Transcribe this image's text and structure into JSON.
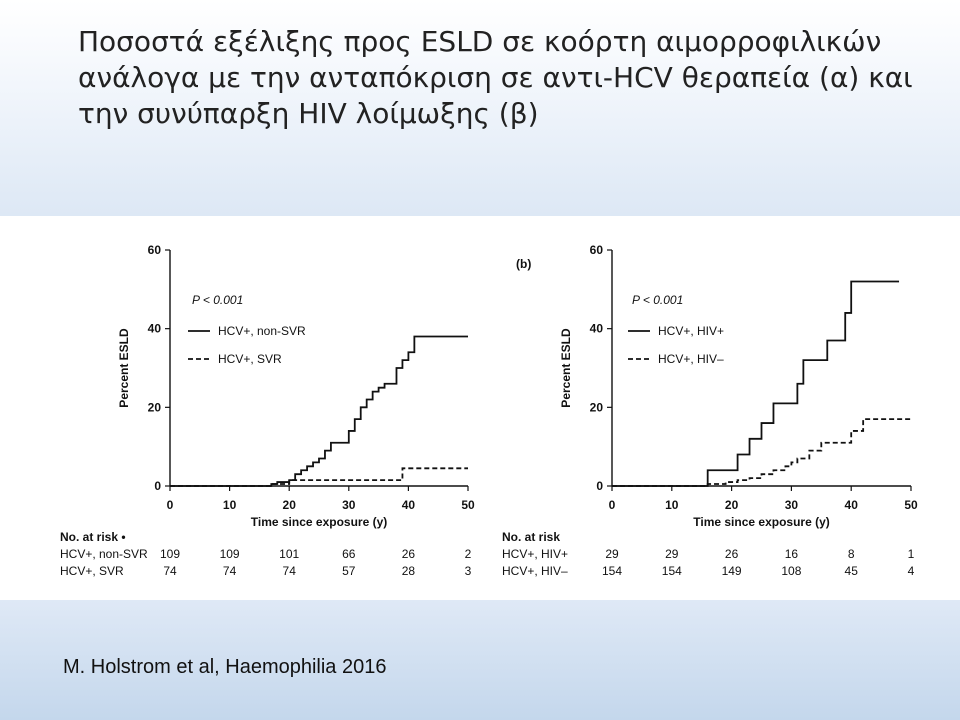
{
  "slide": {
    "title": "Ποσοστά εξέλιξης προς ESLD σε κοόρτη αιμορροφιλικών ανάλογα με την ανταπόκριση σε αντι-HCV θεραπεία (α) και την συνύπαρξη HIV λοίμωξης (β)",
    "citation": "M. Holstrom et al, Haemophilia 2016"
  },
  "chart_data": [
    {
      "type": "line",
      "panel_label": "",
      "xlabel": "Time since exposure (y)",
      "ylabel": "Percent ESLD",
      "xlim": [
        0,
        50
      ],
      "ylim": [
        0,
        60
      ],
      "x_ticks": [
        0,
        10,
        20,
        30,
        40,
        50
      ],
      "y_ticks": [
        0,
        20,
        40,
        60
      ],
      "annotation": "P < 0.001",
      "legend_position": "upper-left",
      "series": [
        {
          "name": "HCV+, non-SVR",
          "style": "solid",
          "x": [
            0,
            17,
            18,
            20,
            21,
            22,
            23,
            24,
            25,
            26,
            27,
            30,
            31,
            32,
            33,
            34,
            35,
            36,
            38,
            39,
            40,
            41,
            50
          ],
          "y": [
            0,
            0.5,
            1,
            1.5,
            3,
            4,
            5,
            6,
            7,
            9,
            11,
            14,
            17,
            20,
            22,
            24,
            25,
            26,
            30,
            32,
            34,
            38,
            38
          ]
        },
        {
          "name": "HCV+, SVR",
          "style": "dashed",
          "x": [
            0,
            17,
            20,
            38,
            39,
            50
          ],
          "y": [
            0,
            0.5,
            1.5,
            1.5,
            4.5,
            4.5
          ]
        }
      ],
      "risk_table": {
        "header": "No. at risk •",
        "rows": [
          {
            "label": "HCV+, non-SVR",
            "values": [
              "109",
              "109",
              "101",
              "66",
              "26",
              "2"
            ]
          },
          {
            "label": "HCV+, SVR",
            "values": [
              "74",
              "74",
              "74",
              "57",
              "28",
              "3"
            ]
          }
        ]
      }
    },
    {
      "type": "line",
      "panel_label": "(b)",
      "xlabel": "Time since exposure (y)",
      "ylabel": "Percent ESLD",
      "xlim": [
        0,
        50
      ],
      "ylim": [
        0,
        60
      ],
      "x_ticks": [
        0,
        10,
        20,
        30,
        40,
        50
      ],
      "y_ticks": [
        0,
        20,
        40,
        60
      ],
      "annotation": "P < 0.001",
      "legend_position": "upper-left",
      "series": [
        {
          "name": "HCV+, HIV+",
          "style": "solid",
          "x": [
            0,
            16,
            20,
            21,
            23,
            25,
            27,
            30,
            31,
            32,
            36,
            39,
            40,
            48
          ],
          "y": [
            0,
            4,
            4,
            8,
            12,
            16,
            21,
            21,
            26,
            32,
            37,
            44,
            52,
            52
          ]
        },
        {
          "name": "HCV+, HIV–",
          "style": "dashed",
          "x": [
            0,
            16,
            19,
            21,
            23,
            25,
            27,
            29,
            30,
            31,
            33,
            35,
            38,
            40,
            42,
            50
          ],
          "y": [
            0,
            0.5,
            1,
            1.5,
            2,
            3,
            4,
            5,
            6,
            7,
            9,
            11,
            11,
            14,
            17,
            17
          ]
        }
      ],
      "risk_table": {
        "header": "No. at risk",
        "rows": [
          {
            "label": "HCV+, HIV+",
            "values": [
              "29",
              "29",
              "26",
              "16",
              "8",
              "1"
            ]
          },
          {
            "label": "HCV+, HIV–",
            "values": [
              "154",
              "154",
              "149",
              "108",
              "45",
              "4"
            ]
          }
        ]
      }
    }
  ]
}
